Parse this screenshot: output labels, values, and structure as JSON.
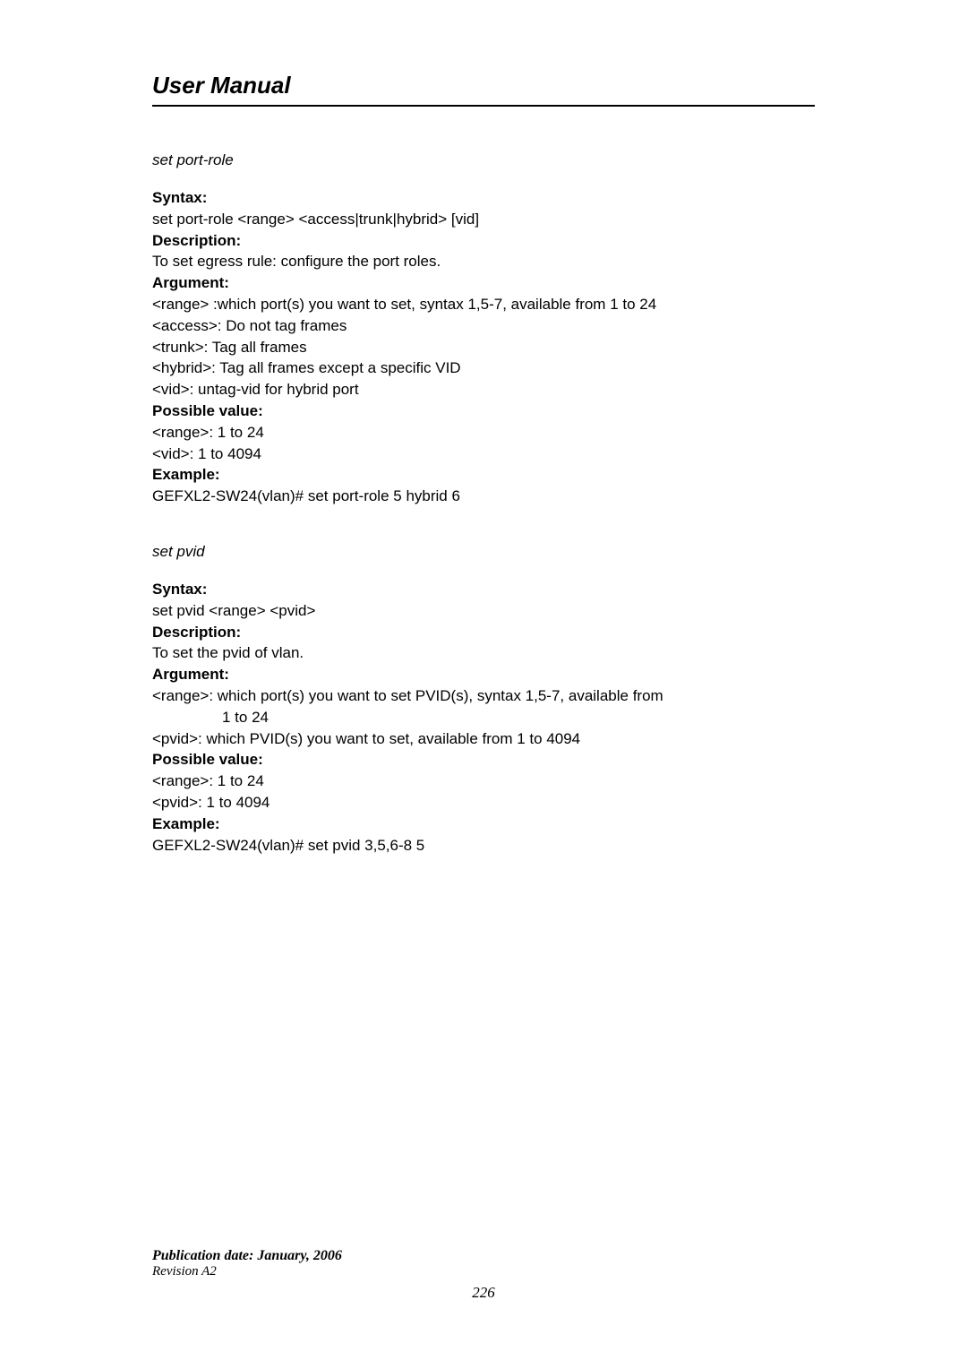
{
  "header": {
    "title": "User Manual"
  },
  "sections": [
    {
      "name": "set port-role",
      "syntax_label": "Syntax:",
      "syntax": "set port-role <range> <access|trunk|hybrid> [vid]",
      "description_label": "Description:",
      "description": "To set egress rule: configure the port roles.",
      "argument_label": "Argument:",
      "arguments": [
        "<range> :which port(s) you want to set, syntax 1,5-7, available from 1 to 24",
        "<access>: Do not tag frames",
        "<trunk>: Tag all frames",
        "<hybrid>: Tag all frames except a specific VID",
        "<vid>: untag-vid for hybrid port"
      ],
      "possible_label": "Possible value:",
      "possible": [
        "<range>: 1 to 24",
        "<vid>: 1 to 4094"
      ],
      "example_label": "Example:",
      "example": "GEFXL2-SW24(vlan)# set port-role 5 hybrid 6"
    },
    {
      "name": "set pvid",
      "syntax_label": "Syntax:",
      "syntax": "set pvid <range> <pvid>",
      "description_label": "Description:",
      "description": "To set the pvid of vlan.",
      "argument_label": "Argument:",
      "arguments": [
        "<range>: which port(s) you want to set PVID(s), syntax 1,5-7, available from",
        "1 to 24",
        "<pvid>: which PVID(s) you want to set, available from 1 to 4094"
      ],
      "argument_indent_indices": [
        1
      ],
      "possible_label": "Possible value:",
      "possible": [
        "<range>: 1 to 24",
        "<pvid>: 1 to 4094"
      ],
      "example_label": "Example:",
      "example": "GEFXL2-SW24(vlan)# set pvid 3,5,6-8 5"
    }
  ],
  "footer": {
    "publication": "Publication date: January, 2006",
    "revision": "Revision A2",
    "page_number": "226"
  }
}
